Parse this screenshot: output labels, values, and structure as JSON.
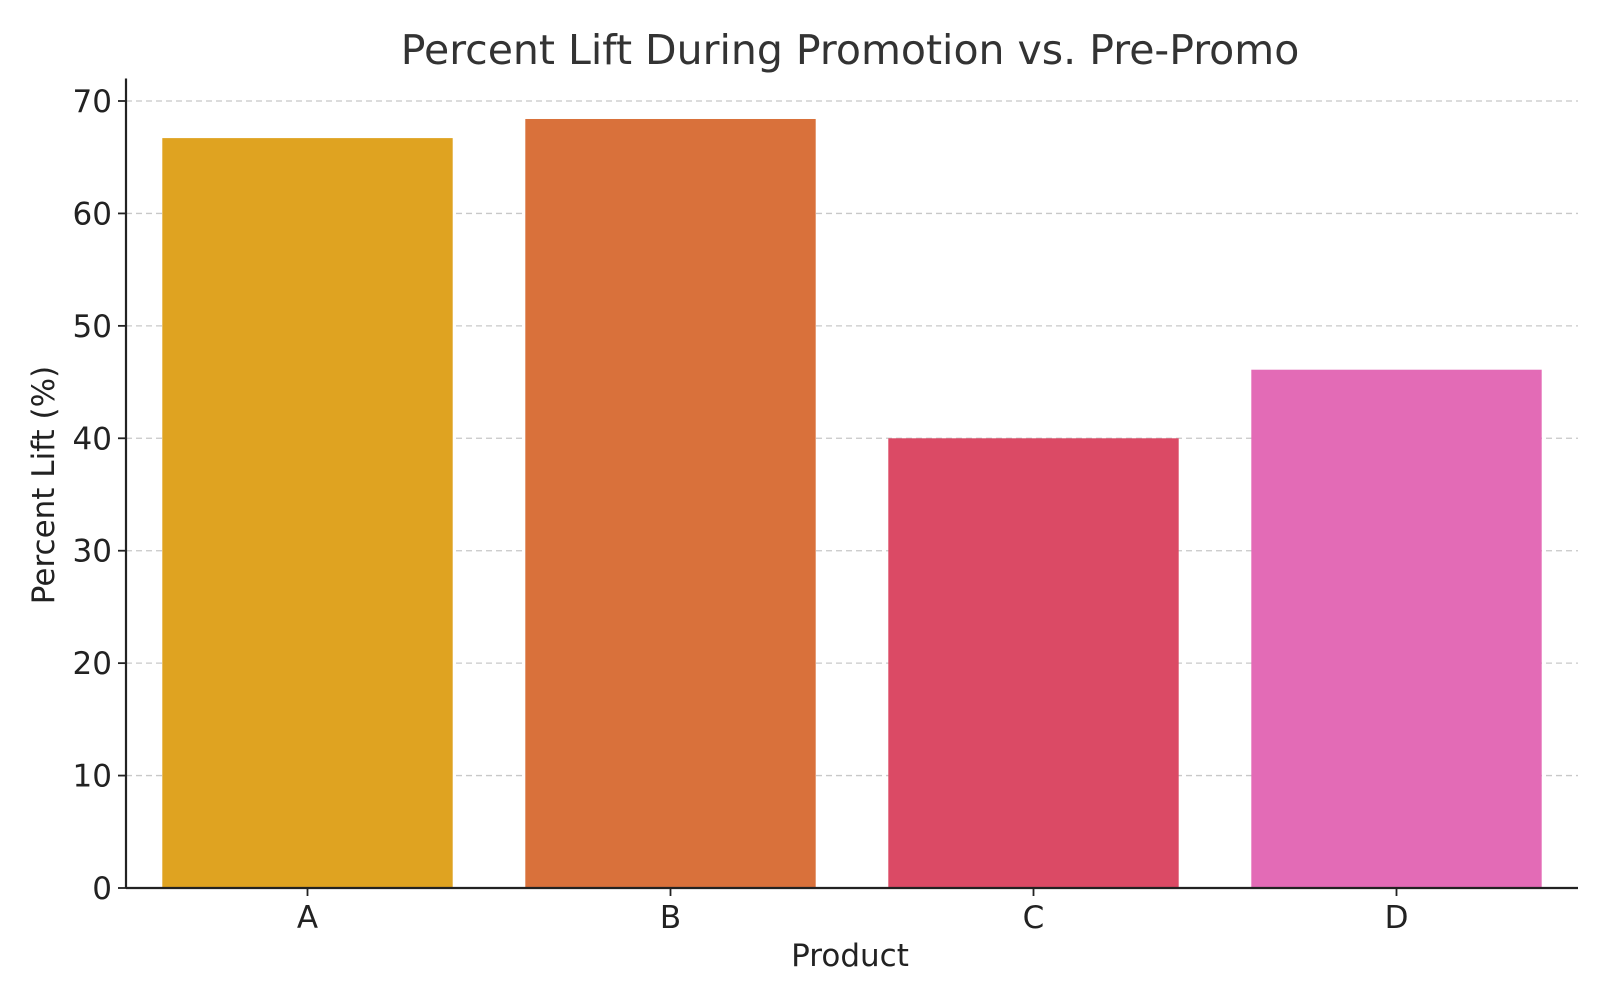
{
  "chart_data": {
    "type": "bar",
    "title": "Percent Lift During Promotion vs. Pre-Promo",
    "xlabel": "Product",
    "ylabel": "Percent Lift (%)",
    "categories": [
      "A",
      "B",
      "C",
      "D"
    ],
    "values": [
      66.7,
      68.4,
      40.0,
      46.1
    ],
    "colors": [
      "#DFA321",
      "#D9713B",
      "#DB4A65",
      "#E36BB6"
    ],
    "ylim": [
      0,
      72
    ],
    "yticks": [
      0,
      10,
      20,
      30,
      40,
      50,
      60,
      70
    ],
    "grid": "y-dashed",
    "legend": "none"
  }
}
